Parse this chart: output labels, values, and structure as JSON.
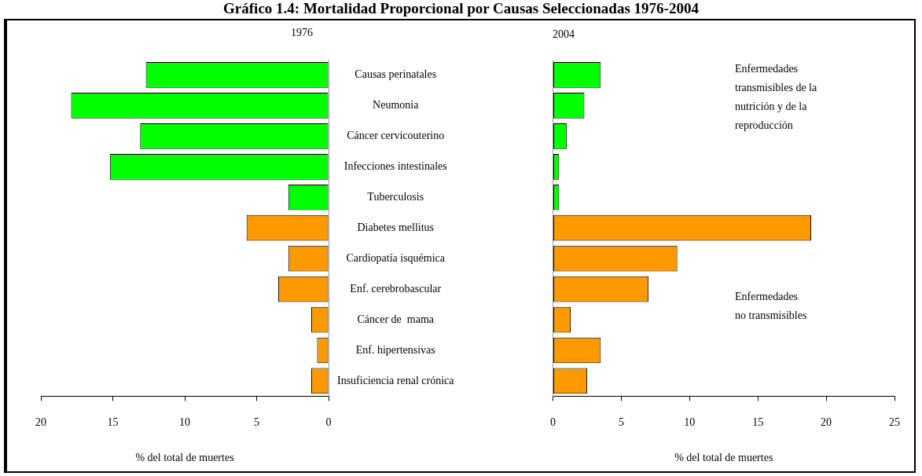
{
  "chart_data": [
    {
      "type": "bar",
      "orientation": "horizontal",
      "title": "Gráfico 1.4: Mortalidad Proporcional por Causas Seleccionadas 1976-2004",
      "subtitle": "1976",
      "xlabel": "% del total de muertes",
      "categories": [
        "Causas perinatales",
        "Neumonia",
        "Cáncer cervicouterino",
        "Infecciones intestinales",
        "Tuberculosis",
        "Diabetes mellitus",
        "Cardiopatía isquémica",
        "Enf. cerebrobascular",
        "Cáncer de  mama",
        "Enf. hipertensivas",
        "Insuficiencia renal crónica"
      ],
      "values": [
        12.7,
        17.9,
        13.1,
        15.2,
        2.8,
        5.7,
        2.8,
        3.5,
        1.2,
        0.8,
        1.2
      ],
      "colors": [
        "#00ff00",
        "#00ff00",
        "#00ff00",
        "#00ff00",
        "#00ff00",
        "#ff9900",
        "#ff9900",
        "#ff9900",
        "#ff9900",
        "#ff9900",
        "#ff9900"
      ],
      "xlim": [
        20,
        0
      ],
      "xticks": [
        20,
        15,
        10,
        5,
        0
      ]
    },
    {
      "type": "bar",
      "orientation": "horizontal",
      "title": "2004",
      "xlabel": "% del total de muertes",
      "categories": [
        null,
        null,
        null,
        null,
        null,
        null,
        null,
        null,
        null,
        null,
        null
      ],
      "values": [
        3.5,
        2.3,
        1.0,
        0.45,
        0.45,
        18.9,
        9.1,
        7.0,
        1.3,
        3.5,
        2.5
      ],
      "colors": [
        "#00ff00",
        "#00ff00",
        "#00ff00",
        "#00ff00",
        "#00ff00",
        "#ff9900",
        "#ff9900",
        "#ff9900",
        "#ff9900",
        "#ff9900",
        "#ff9900"
      ],
      "xlim": [
        0,
        25
      ],
      "xticks": [
        0,
        5,
        10,
        15,
        20,
        25
      ],
      "tick_labels": "x",
      "annotations": [
        "Enfermedades\ntransmisibles de la\nnutrición y de la\nreproducción",
        "Enfermedades\nno transmisibles"
      ]
    }
  ]
}
